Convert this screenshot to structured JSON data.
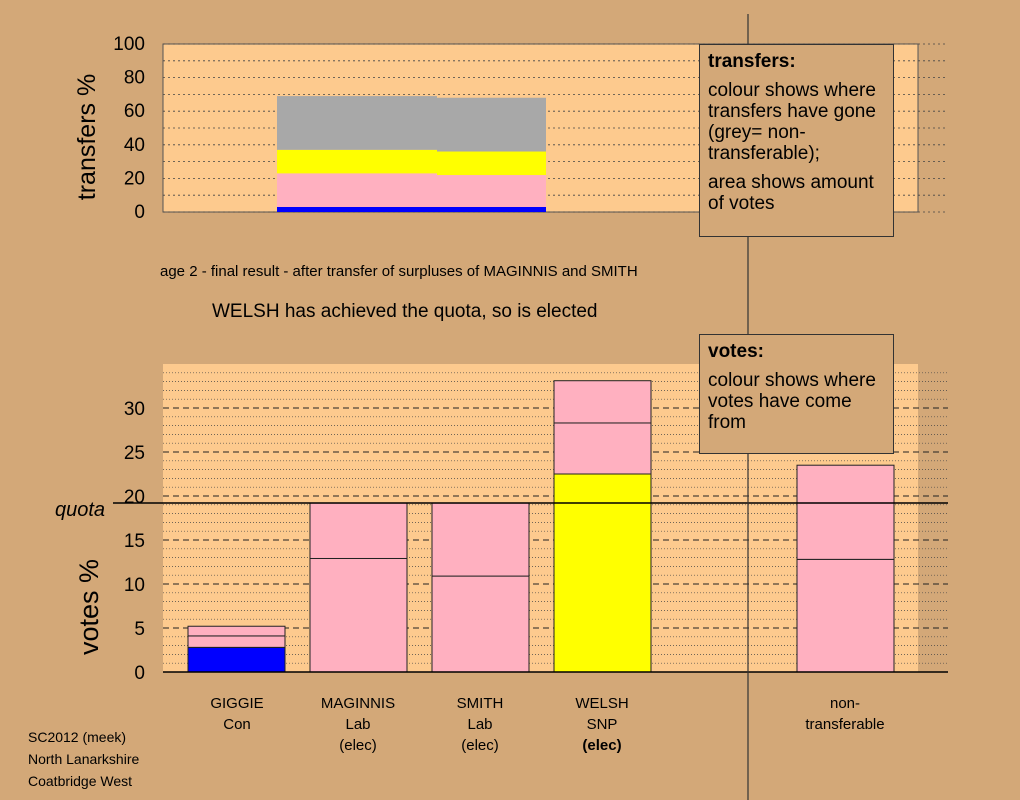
{
  "stage_caption": "age 2 - final result - after transfer of surpluses of MAGINNIS and SMITH",
  "status_message": "WELSH has achieved the quota, so is elected",
  "footer": {
    "line1": "SC2012 (meek)",
    "line2": "North Lanarkshire",
    "line3": "Coatbridge West"
  },
  "transfers_legend": {
    "title": "transfers:",
    "line1": "colour shows where transfers have gone (grey= non-transferable);",
    "line2": "area shows amount of votes"
  },
  "votes_legend": {
    "title": "votes:",
    "line1": "colour shows where votes have come from"
  },
  "colors": {
    "background": "#d3a878",
    "plot_background": "#fdca8e",
    "Con": "#0000ff",
    "Lab": "#ffb0c0",
    "SNP": "#ffff00",
    "non_transferable": "#a8a8a8"
  },
  "candidates": [
    {
      "name": "GIGGIE",
      "party": "Con",
      "status": "",
      "status_bold": false
    },
    {
      "name": "MAGINNIS",
      "party": "Lab",
      "status": "(elec)",
      "status_bold": false
    },
    {
      "name": "SMITH",
      "party": "Lab",
      "status": "(elec)",
      "status_bold": false
    },
    {
      "name": "WELSH",
      "party": "SNP",
      "status": "(elec)",
      "status_bold": true
    },
    {
      "name": "non-",
      "party": "transferable",
      "status": "",
      "status_bold": false
    }
  ],
  "chart_data": [
    {
      "type": "bar",
      "ylabel": "transfers %",
      "ylim": [
        0,
        100
      ],
      "yticks": [
        0,
        20,
        40,
        60,
        80,
        100
      ],
      "grid": true,
      "columns": [
        {
          "source": "MAGINNIS",
          "segments": [
            {
              "party": "Con",
              "from": 0,
              "to": 3
            },
            {
              "party": "Lab",
              "from": 3,
              "to": 23
            },
            {
              "party": "SNP",
              "from": 23,
              "to": 37
            },
            {
              "party": "non_transferable",
              "from": 37,
              "to": 69
            }
          ]
        },
        {
          "source": "SMITH",
          "segments": [
            {
              "party": "Con",
              "from": 0,
              "to": 3
            },
            {
              "party": "Lab",
              "from": 3,
              "to": 22
            },
            {
              "party": "SNP",
              "from": 22,
              "to": 36
            },
            {
              "party": "non_transferable",
              "from": 36,
              "to": 68
            }
          ]
        }
      ]
    },
    {
      "type": "bar",
      "ylabel": "votes %",
      "ylim": [
        0,
        35
      ],
      "yticks": [
        0,
        5,
        10,
        15,
        20,
        25,
        30
      ],
      "grid": true,
      "quota": 19.2,
      "quota_label": "quota",
      "categories": [
        "GIGGIE",
        "MAGINNIS",
        "SMITH",
        "WELSH",
        "non-transferable"
      ],
      "bars": [
        {
          "category": "GIGGIE",
          "segments": [
            {
              "party": "Con",
              "from": 0,
              "to": 2.8
            },
            {
              "party": "Lab",
              "from": 2.8,
              "to": 4.1
            },
            {
              "party": "Lab",
              "from": 4.1,
              "to": 5.2
            }
          ]
        },
        {
          "category": "MAGINNIS",
          "segments": [
            {
              "party": "Lab",
              "from": 0,
              "to": 12.9
            },
            {
              "party": "Lab",
              "from": 12.9,
              "to": 19.2
            }
          ]
        },
        {
          "category": "SMITH",
          "segments": [
            {
              "party": "Lab",
              "from": 0,
              "to": 10.9
            },
            {
              "party": "Lab",
              "from": 10.9,
              "to": 19.2
            }
          ]
        },
        {
          "category": "WELSH",
          "segments": [
            {
              "party": "SNP",
              "from": 0,
              "to": 22.5
            },
            {
              "party": "Lab",
              "from": 22.5,
              "to": 28.3
            },
            {
              "party": "Lab",
              "from": 28.3,
              "to": 33.1
            }
          ]
        },
        {
          "category": "non-transferable",
          "segments": [
            {
              "party": "Lab",
              "from": 0,
              "to": 12.8
            },
            {
              "party": "Lab",
              "from": 12.8,
              "to": 23.5
            }
          ]
        }
      ]
    }
  ]
}
